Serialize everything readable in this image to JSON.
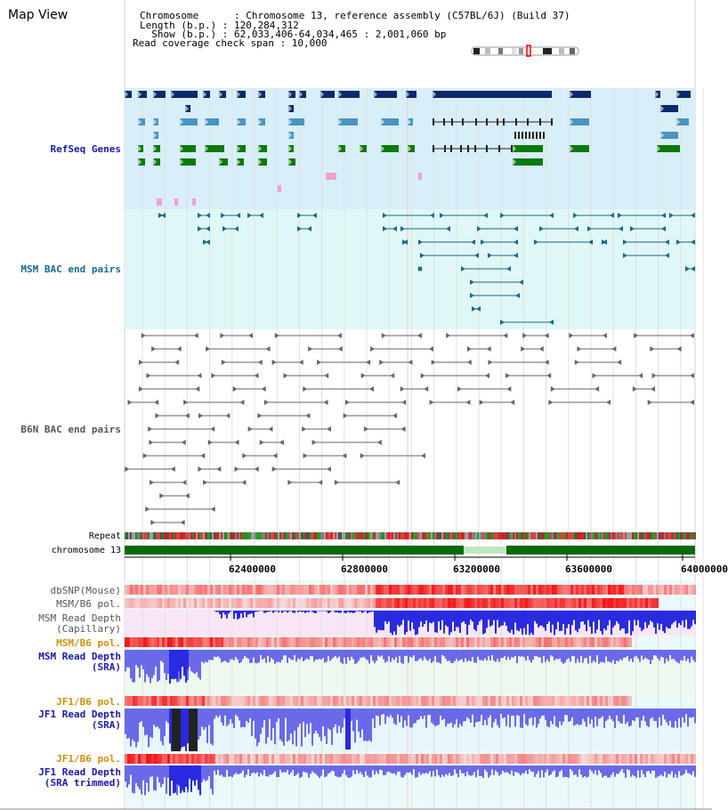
{
  "header": {
    "title": "Map View",
    "chromosome": "Chromosome      : Chromosome 13, reference assembly (C57BL/6J) (Build 37)",
    "length": "Length (b.p.) : 120,284,312",
    "show": "  Show (b.p.) : 62,033,406-64,034,465 : 2,001,060 bp",
    "coverage": "Read coverage check span : 10,000"
  },
  "tracks": {
    "refseq": "RefSeq Genes",
    "msm_bac": "MSM BAC end pairs",
    "b6n_bac": "B6N BAC end pairs",
    "repeat": "Repeat",
    "chrom": "chromosome 13",
    "dbsnp": "dbSNP(Mouse)",
    "msm_b6_pol": "MSM/B6 pol.",
    "msm_cap_1": "MSM Read Depth",
    "msm_cap_2": "(Capillary)",
    "msm_b6_pol2": "MSM/B6 pol.",
    "msm_sra_1": "MSM Read Depth",
    "msm_sra_2": "(SRA)",
    "jf1_b6_pol": "JF1/B6 pol.",
    "jf1_sra_1": "JF1 Read Depth",
    "jf1_sra_2": "(SRA)",
    "jf1_b6_pol2": "JF1/B6 pol.",
    "jf1_trim_1": "JF1 Read Depth",
    "jf1_trim_2": "(SRA trimmed)"
  },
  "axis": {
    "ticks": [
      "62400000",
      "62800000",
      "63200000",
      "63600000",
      "64000000"
    ]
  },
  "colors": {
    "refseq_bg": "#d8eef9",
    "msm_bg": "#e0f7f7",
    "dark_gene": "#0a2a6a",
    "mid_gene": "#4a94c0",
    "green_gene": "#0a7a0a",
    "pink_gene": "#f4a0c8",
    "msm_pair": "#1a6a8a",
    "b6n_pair": "#666666",
    "chrom_green": "#0a6a0a",
    "depth_blue": "#2a2ae0",
    "label_blue": "#1a1aa8",
    "label_teal": "#1a6a8a",
    "label_gray": "#555555",
    "label_orange": "#d0900a"
  }
}
